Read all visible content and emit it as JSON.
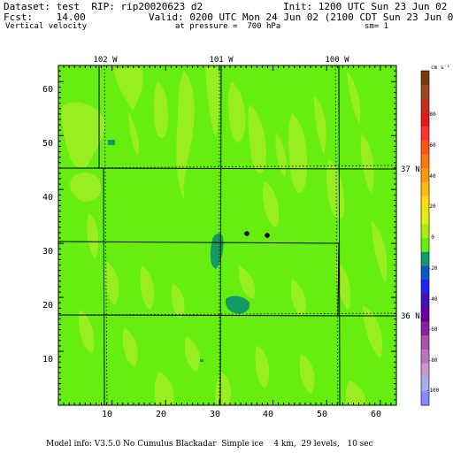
{
  "header": {
    "dataset": "Dataset: test  RIP: rip20020623 d2",
    "init": "Init: 1200 UTC Sun 23 Jun 02",
    "fcst": "Fcst:    14.00",
    "valid": "Valid: 0200 UTC Mon 24 Jun 02 (2100 CDT Sun 23 Jun 02)",
    "field": "Vertical velocity",
    "pressure": "at pressure =  700 hPa",
    "smoothing": "sm= 1"
  },
  "map": {
    "x_ticks": [
      "10",
      "20",
      "30",
      "40",
      "50",
      "60"
    ],
    "y_ticks": [
      "10",
      "20",
      "30",
      "40",
      "50",
      "60"
    ],
    "longitudes": [
      "102 W",
      "101 W",
      "100 W"
    ],
    "latitudes": [
      "37 N",
      "36 N"
    ],
    "colors": {
      "field_main": "#66ee11",
      "field_light": "#99ee22",
      "downdraft": "#119966"
    }
  },
  "colorbar": {
    "units": "cm s⁻¹",
    "labels": [
      "80",
      "60",
      "40",
      "20",
      "0",
      "-20",
      "-40",
      "-60",
      "-80",
      "-100"
    ],
    "colors": [
      "#7a3a10",
      "#9b4a1f",
      "#c0301d",
      "#e21c1c",
      "#ff3333",
      "#ff5511",
      "#ff7711",
      "#ff9911",
      "#ffbb11",
      "#ffdd11",
      "#ddee11",
      "#aaee11",
      "#66ee11",
      "#119966",
      "#1155cc",
      "#2222ee",
      "#4411bb",
      "#660099",
      "#882299",
      "#aa55aa",
      "#bb77bb",
      "#cc99cc",
      "#aaaaee",
      "#8888ff"
    ]
  },
  "footer": "Model info: V3.5.0 No Cumulus Blackadar  Simple ice    4 km,  29 levels,   10 sec"
}
